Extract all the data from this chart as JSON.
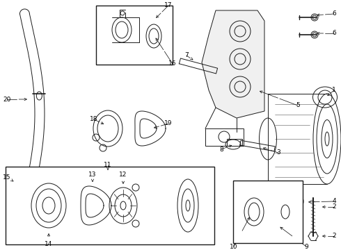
{
  "bg_color": "#ffffff",
  "line_color": "#1a1a1a",
  "lw": 0.7,
  "fig_width": 4.9,
  "fig_height": 3.6,
  "dpi": 100
}
